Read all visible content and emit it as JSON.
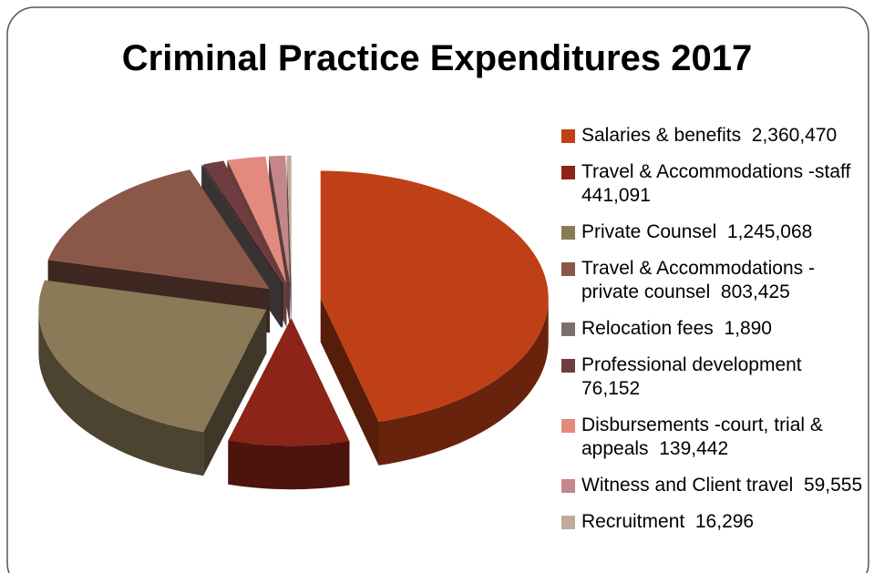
{
  "chart_data": {
    "type": "pie",
    "title": "Criminal Practice Expenditures 2017",
    "categories": [
      "Salaries & benefits",
      "Travel & Accommodations -staff",
      "Private Counsel",
      "Travel & Accommodations -private counsel",
      "Relocation fees",
      "Professional development",
      "Disbursements -court, trial & appeals",
      "Witness and Client travel",
      "Recruitment"
    ],
    "values": [
      2360470,
      441091,
      1245068,
      803425,
      1890,
      76152,
      139442,
      59555,
      16296
    ],
    "value_labels": [
      "2,360,470",
      "441,091",
      "1,245,068",
      "803,425",
      "1,890",
      "76,152",
      "139,442",
      "59,555",
      "16,296"
    ],
    "colors": [
      "#bf4016",
      "#8c2418",
      "#8b7a58",
      "#8a5748",
      "#7d6e70",
      "#6f3d40",
      "#e28a7e",
      "#c5868a",
      "#c2aa9a"
    ],
    "legend": "right"
  }
}
